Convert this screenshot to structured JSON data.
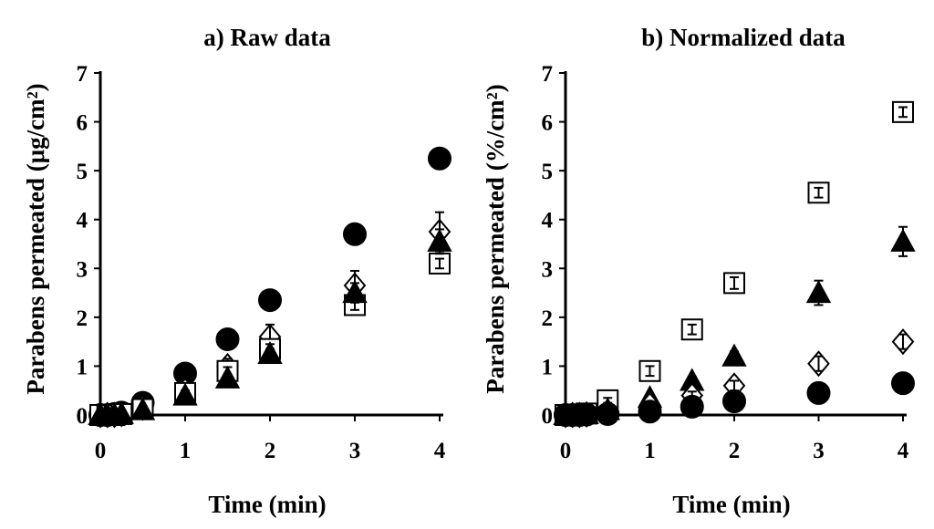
{
  "chart_data": [
    {
      "type": "scatter",
      "title": "a) Raw data",
      "xlabel": "Time (min)",
      "ylabel": "Parabens permeated (μg/cm²)",
      "xlim": [
        0,
        4
      ],
      "ylim": [
        0,
        7
      ],
      "xticks": [
        0,
        1,
        2,
        3,
        4
      ],
      "yticks": [
        0,
        1,
        2,
        3,
        4,
        5,
        6,
        7
      ],
      "series": [
        {
          "name": "filled-circle",
          "marker": "circle",
          "filled": true,
          "x": [
            0,
            0.083,
            0.167,
            0.25,
            0.5,
            1,
            1.5,
            2,
            3,
            4
          ],
          "y": [
            0,
            0,
            0.02,
            0.05,
            0.25,
            0.85,
            1.55,
            2.35,
            3.7,
            5.25
          ],
          "err": [
            0,
            0,
            0,
            0,
            0.05,
            0.07,
            0.08,
            0.1,
            0.12,
            0.15
          ]
        },
        {
          "name": "open-diamond",
          "marker": "diamond",
          "filled": false,
          "x": [
            0,
            0.083,
            0.167,
            0.25,
            0.5,
            1,
            1.5,
            2,
            3,
            4
          ],
          "y": [
            0,
            0,
            0,
            0.02,
            0.15,
            0.5,
            1.0,
            1.6,
            2.65,
            3.75
          ],
          "err": [
            0,
            0,
            0,
            0,
            0.05,
            0.1,
            0.15,
            0.25,
            0.3,
            0.4
          ]
        },
        {
          "name": "open-square",
          "marker": "square",
          "filled": false,
          "x": [
            0,
            0.083,
            0.167,
            0.25,
            0.5,
            1,
            1.5,
            2,
            3,
            4
          ],
          "y": [
            0,
            0,
            0,
            0.02,
            0.12,
            0.45,
            0.9,
            1.35,
            2.25,
            3.1
          ],
          "err": [
            0,
            0,
            0,
            0,
            0.03,
            0.05,
            0.08,
            0.1,
            0.1,
            0.1
          ]
        },
        {
          "name": "filled-triangle",
          "marker": "triangle",
          "filled": true,
          "x": [
            0,
            0.083,
            0.167,
            0.25,
            0.5,
            1,
            1.5,
            2,
            3,
            4
          ],
          "y": [
            0,
            0,
            0,
            0.02,
            0.1,
            0.4,
            0.75,
            1.25,
            2.5,
            3.55
          ],
          "err": [
            0,
            0,
            0,
            0,
            0.03,
            0.05,
            0.08,
            0.1,
            0.2,
            0.25
          ]
        }
      ]
    },
    {
      "type": "scatter",
      "title": "b) Normalized data",
      "xlabel": "Time (min)",
      "ylabel": "Parabens permeated (%/cm²)",
      "xlim": [
        0,
        4
      ],
      "ylim": [
        0,
        7
      ],
      "xticks": [
        0,
        1,
        2,
        3,
        4
      ],
      "yticks": [
        0,
        1,
        2,
        3,
        4,
        5,
        6,
        7
      ],
      "series": [
        {
          "name": "open-square",
          "marker": "square",
          "filled": false,
          "x": [
            0,
            0.083,
            0.167,
            0.25,
            0.5,
            1,
            1.5,
            2,
            3,
            4
          ],
          "y": [
            0,
            0,
            0,
            0.03,
            0.3,
            0.9,
            1.75,
            2.7,
            4.55,
            6.2
          ],
          "err": [
            0,
            0,
            0,
            0,
            0.05,
            0.1,
            0.1,
            0.12,
            0.1,
            0.1
          ]
        },
        {
          "name": "filled-triangle",
          "marker": "triangle",
          "filled": true,
          "x": [
            0,
            0.083,
            0.167,
            0.25,
            0.5,
            1,
            1.5,
            2,
            3,
            4
          ],
          "y": [
            0,
            0,
            0,
            0.02,
            0.1,
            0.35,
            0.7,
            1.2,
            2.5,
            3.55
          ],
          "err": [
            0,
            0,
            0,
            0,
            0.03,
            0.05,
            0.08,
            0.1,
            0.25,
            0.3
          ]
        },
        {
          "name": "open-diamond",
          "marker": "diamond",
          "filled": false,
          "x": [
            0,
            0.083,
            0.167,
            0.25,
            0.5,
            1,
            1.5,
            2,
            3,
            4
          ],
          "y": [
            0,
            0,
            0,
            0.01,
            0.05,
            0.2,
            0.4,
            0.6,
            1.05,
            1.5
          ],
          "err": [
            0,
            0,
            0,
            0,
            0.02,
            0.05,
            0.08,
            0.1,
            0.15,
            0.15
          ]
        },
        {
          "name": "filled-circle",
          "marker": "circle",
          "filled": true,
          "x": [
            0,
            0.083,
            0.167,
            0.25,
            0.5,
            1,
            1.5,
            2,
            3,
            4
          ],
          "y": [
            0,
            0,
            0,
            0.01,
            0.02,
            0.07,
            0.17,
            0.28,
            0.45,
            0.65
          ],
          "err": [
            0,
            0,
            0,
            0,
            0.01,
            0.02,
            0.03,
            0.05,
            0.05,
            0.05
          ]
        }
      ]
    }
  ]
}
